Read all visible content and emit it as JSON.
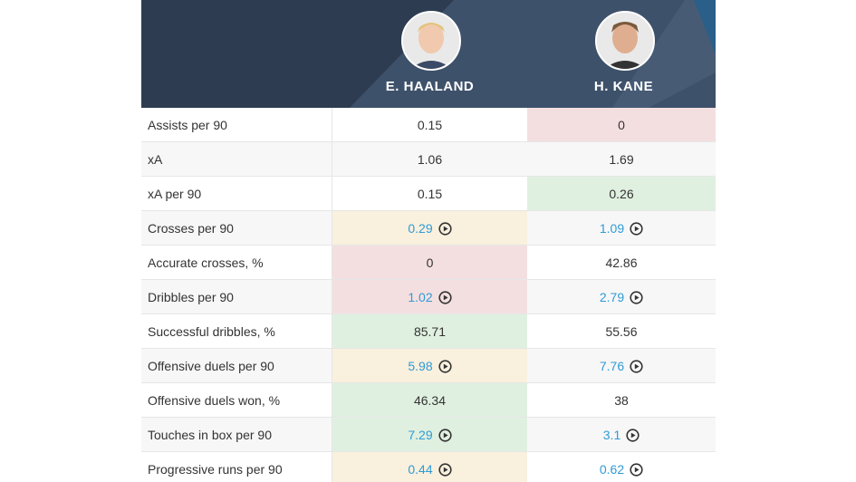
{
  "header": {
    "players": [
      {
        "name": "E. HAALAND"
      },
      {
        "name": "H. KANE"
      }
    ]
  },
  "table": {
    "rows": [
      [
        "Assists per 90",
        "0.15",
        "0"
      ],
      [
        "xA",
        "1.06",
        "1.69"
      ],
      [
        "xA per 90",
        "0.15",
        "0.26"
      ],
      [
        "Crosses per 90",
        "0.29",
        "1.09"
      ],
      [
        "Accurate crosses, %",
        "0",
        "42.86"
      ],
      [
        "Dribbles per 90",
        "1.02",
        "2.79"
      ],
      [
        "Successful dribbles, %",
        "85.71",
        "55.56"
      ],
      [
        "Offensive duels per 90",
        "5.98",
        "7.76"
      ],
      [
        "Offensive duels won, %",
        "46.34",
        "38"
      ],
      [
        "Touches in box per 90",
        "7.29",
        "3.1"
      ],
      [
        "Progressive runs per 90",
        "0.44",
        "0.62"
      ]
    ]
  }
}
